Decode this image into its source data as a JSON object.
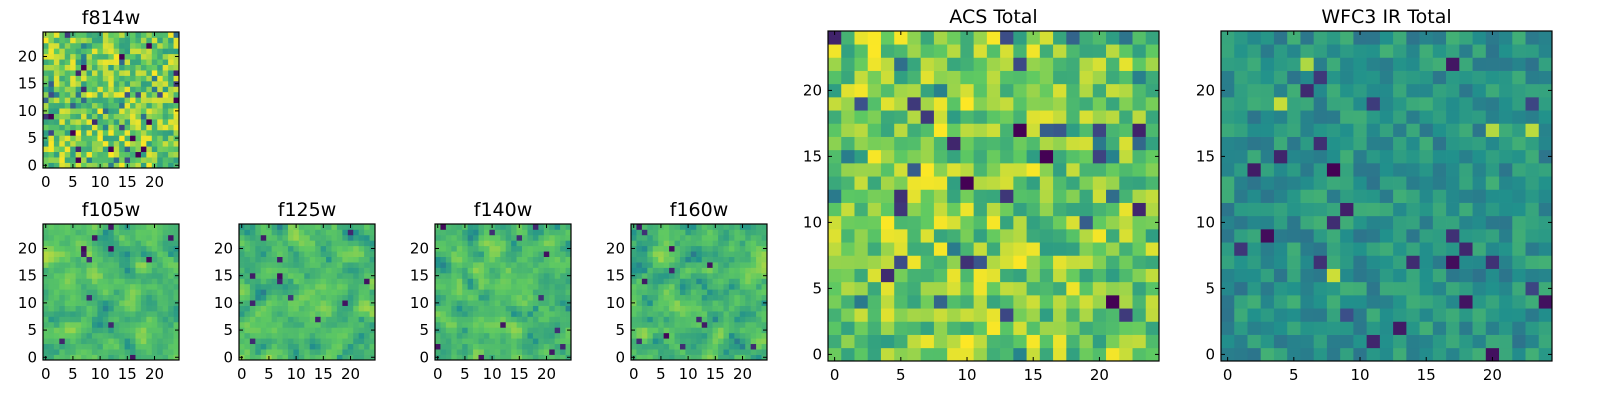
{
  "chart_data": [
    {
      "id": "f814w",
      "type": "heatmap",
      "title": "f814w",
      "grid": false,
      "colormap": "viridis",
      "xlim": [
        -0.5,
        24.5
      ],
      "ylim": [
        -0.5,
        24.5
      ],
      "xticks": [
        0,
        5,
        10,
        15,
        20
      ],
      "yticks": [
        0,
        5,
        10,
        15,
        20
      ],
      "xtick_labels": [
        "0",
        "5",
        "10",
        "15",
        "20"
      ],
      "ytick_labels": [
        "0",
        "5",
        "10",
        "15",
        "20"
      ],
      "grid_size": [
        25,
        25
      ],
      "value_range": [
        0,
        1
      ],
      "value_seed": 814,
      "value_profile": "high"
    },
    {
      "id": "f105w",
      "type": "heatmap",
      "title": "f105w",
      "grid": false,
      "colormap": "viridis",
      "xlim": [
        -0.5,
        24.5
      ],
      "ylim": [
        -0.5,
        24.5
      ],
      "xticks": [
        0,
        5,
        10,
        15,
        20
      ],
      "yticks": [
        0,
        5,
        10,
        15,
        20
      ],
      "xtick_labels": [
        "0",
        "5",
        "10",
        "15",
        "20"
      ],
      "ytick_labels": [
        "0",
        "5",
        "10",
        "15",
        "20"
      ],
      "grid_size": [
        25,
        25
      ],
      "value_range": [
        0,
        1
      ],
      "value_seed": 105,
      "value_profile": "smooth"
    },
    {
      "id": "f125w",
      "type": "heatmap",
      "title": "f125w",
      "grid": false,
      "colormap": "viridis",
      "xlim": [
        -0.5,
        24.5
      ],
      "ylim": [
        -0.5,
        24.5
      ],
      "xticks": [
        0,
        5,
        10,
        15,
        20
      ],
      "yticks": [
        0,
        5,
        10,
        15,
        20
      ],
      "xtick_labels": [
        "0",
        "5",
        "10",
        "15",
        "20"
      ],
      "ytick_labels": [
        "0",
        "5",
        "10",
        "15",
        "20"
      ],
      "grid_size": [
        25,
        25
      ],
      "value_range": [
        0,
        1
      ],
      "value_seed": 125,
      "value_profile": "smooth"
    },
    {
      "id": "f140w",
      "type": "heatmap",
      "title": "f140w",
      "grid": false,
      "colormap": "viridis",
      "xlim": [
        -0.5,
        24.5
      ],
      "ylim": [
        -0.5,
        24.5
      ],
      "xticks": [
        0,
        5,
        10,
        15,
        20
      ],
      "yticks": [
        0,
        5,
        10,
        15,
        20
      ],
      "xtick_labels": [
        "0",
        "5",
        "10",
        "15",
        "20"
      ],
      "ytick_labels": [
        "0",
        "5",
        "10",
        "15",
        "20"
      ],
      "grid_size": [
        25,
        25
      ],
      "value_range": [
        0,
        1
      ],
      "value_seed": 140,
      "value_profile": "smooth"
    },
    {
      "id": "f160w",
      "type": "heatmap",
      "title": "f160w",
      "grid": false,
      "colormap": "viridis",
      "xlim": [
        -0.5,
        24.5
      ],
      "ylim": [
        -0.5,
        24.5
      ],
      "xticks": [
        0,
        5,
        10,
        15,
        20
      ],
      "yticks": [
        0,
        5,
        10,
        15,
        20
      ],
      "xtick_labels": [
        "0",
        "5",
        "10",
        "15",
        "20"
      ],
      "ytick_labels": [
        "0",
        "5",
        "10",
        "15",
        "20"
      ],
      "grid_size": [
        25,
        25
      ],
      "value_range": [
        0,
        1
      ],
      "value_seed": 160,
      "value_profile": "smooth"
    },
    {
      "id": "acs-total",
      "type": "heatmap",
      "title": "ACS Total",
      "grid": false,
      "colormap": "viridis",
      "xlim": [
        -0.5,
        24.5
      ],
      "ylim": [
        -0.5,
        24.5
      ],
      "xticks": [
        0,
        5,
        10,
        15,
        20
      ],
      "yticks": [
        0,
        5,
        10,
        15,
        20
      ],
      "xtick_labels": [
        "0",
        "5",
        "10",
        "15",
        "20"
      ],
      "ytick_labels": [
        "0",
        "5",
        "10",
        "15",
        "20"
      ],
      "grid_size": [
        25,
        25
      ],
      "value_range": [
        0,
        1
      ],
      "value_seed": 2001,
      "value_profile": "high"
    },
    {
      "id": "wfc3-ir-total",
      "type": "heatmap",
      "title": "WFC3 IR Total",
      "grid": false,
      "colormap": "viridis",
      "xlim": [
        -0.5,
        24.5
      ],
      "ylim": [
        -0.5,
        24.5
      ],
      "xticks": [
        0,
        5,
        10,
        15,
        20
      ],
      "yticks": [
        0,
        5,
        10,
        15,
        20
      ],
      "xtick_labels": [
        "0",
        "5",
        "10",
        "15",
        "20"
      ],
      "ytick_labels": [
        "0",
        "5",
        "10",
        "15",
        "20"
      ],
      "grid_size": [
        25,
        25
      ],
      "value_range": [
        0,
        1
      ],
      "value_seed": 3003,
      "value_profile": "mid"
    }
  ],
  "colors": {
    "frame": "#000000",
    "background": "#ffffff",
    "viridis_stops": [
      "#440154",
      "#3b528b",
      "#21918c",
      "#5ec962",
      "#fde725"
    ]
  }
}
